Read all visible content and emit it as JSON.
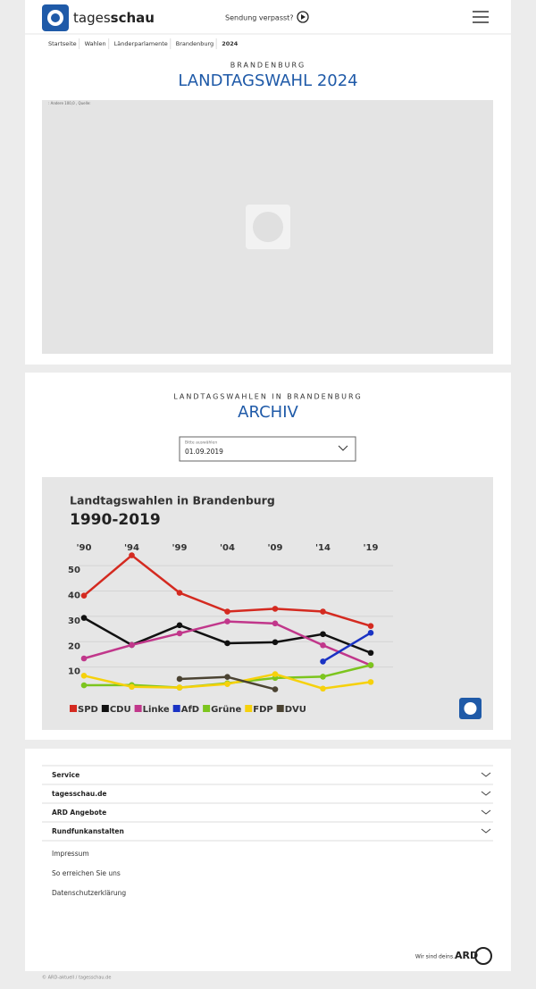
{
  "header": {
    "logo_light": "tages",
    "logo_bold": "schau",
    "missed": "Sendung verpasst?"
  },
  "breadcrumb": [
    "Startseite",
    "Wahlen",
    "Länderparlamente",
    "Brandenburg",
    "2024"
  ],
  "election": {
    "kicker": "BRANDENBURG",
    "title": "LANDTAGSWAHL 2024",
    "image_alt": ": Andere 100,0 , Quelle:"
  },
  "archive": {
    "kicker": "LANDTAGSWAHLEN IN BRANDENBURG",
    "title": "ARCHIV",
    "select_label": "Bitte auswählen",
    "select_value": "01.09.2019"
  },
  "chart_data": {
    "type": "line",
    "title": "Landtagswahlen in Brandenburg",
    "subtitle": "1990-2019",
    "categories": [
      "'90",
      "'94",
      "'99",
      "'04",
      "'09",
      "'14",
      "'19"
    ],
    "ylim": [
      0,
      55
    ],
    "yticks": [
      10,
      20,
      30,
      40,
      50
    ],
    "grid": true,
    "series": [
      {
        "name": "SPD",
        "color": "#d42a20",
        "values": [
          38.2,
          54.1,
          39.3,
          31.9,
          33.0,
          31.9,
          26.2
        ]
      },
      {
        "name": "CDU",
        "color": "#111111",
        "values": [
          29.4,
          18.7,
          26.5,
          19.4,
          19.8,
          23.0,
          15.6
        ]
      },
      {
        "name": "Linke",
        "color": "#c1378b",
        "values": [
          13.4,
          18.7,
          23.3,
          28.0,
          27.2,
          18.6,
          10.7
        ]
      },
      {
        "name": "AfD",
        "color": "#1a33c4",
        "values": [
          null,
          null,
          null,
          null,
          null,
          12.2,
          23.5
        ]
      },
      {
        "name": "Grüne",
        "color": "#7cc51e",
        "values": [
          2.8,
          2.9,
          1.9,
          3.6,
          5.7,
          6.2,
          10.8
        ]
      },
      {
        "name": "FDP",
        "color": "#f6d10c",
        "values": [
          6.6,
          2.2,
          1.9,
          3.3,
          7.2,
          1.5,
          4.1
        ]
      },
      {
        "name": "DVU",
        "color": "#4b4332",
        "values": [
          null,
          null,
          5.3,
          6.1,
          1.2,
          null,
          null
        ]
      }
    ]
  },
  "footer": {
    "sections": [
      "Service",
      "tagesschau.de",
      "ARD Angebote",
      "Rundfunkanstalten"
    ],
    "links": [
      "Impressum",
      "So erreichen Sie uns",
      "Datenschutzerklärung"
    ],
    "slogan": "Wir sind deins.",
    "brand": "ARD",
    "copyright": "© ARD-aktuell / tagesschau.de"
  }
}
